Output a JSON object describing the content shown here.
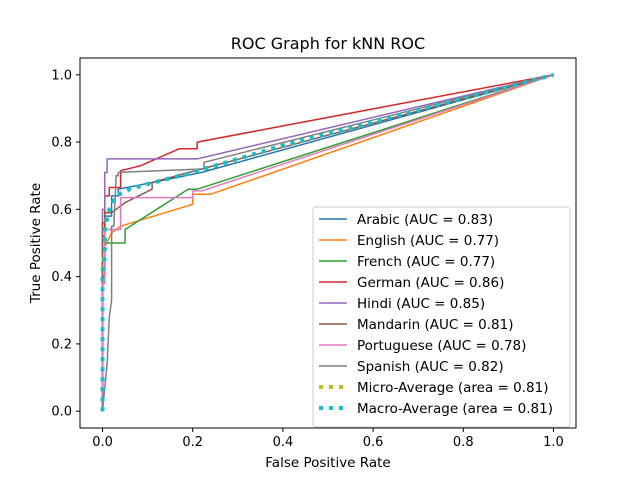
{
  "chart_data": {
    "type": "line",
    "title": "ROC Graph for kNN ROC",
    "xlabel": "False Positive Rate",
    "ylabel": "True Positive Rate",
    "xlim": [
      -0.05,
      1.05
    ],
    "ylim": [
      -0.05,
      1.05
    ],
    "xticks": [
      "0.0",
      "0.2",
      "0.4",
      "0.6",
      "0.8",
      "1.0"
    ],
    "yticks": [
      "0.0",
      "0.2",
      "0.4",
      "0.6",
      "0.8",
      "1.0"
    ],
    "grid": false,
    "legend_position": "lower-right",
    "series": [
      {
        "name": "Arabic (AUC = 0.83)",
        "color": "#1f77b4",
        "style": "solid",
        "x": [
          0,
          0,
          0.005,
          0.005,
          0.02,
          0.02,
          0.035,
          0.035,
          0.11,
          0.22,
          1.0
        ],
        "y": [
          0,
          0.4,
          0.4,
          0.58,
          0.58,
          0.64,
          0.64,
          0.66,
          0.68,
          0.71,
          1.0
        ]
      },
      {
        "name": "English (AUC = 0.77)",
        "color": "#ff7f0e",
        "style": "solid",
        "x": [
          0,
          0,
          0.005,
          0.005,
          0.02,
          0.04,
          0.2,
          0.2,
          0.24,
          1.0
        ],
        "y": [
          0,
          0.4,
          0.4,
          0.49,
          0.53,
          0.55,
          0.615,
          0.645,
          0.645,
          1.0
        ]
      },
      {
        "name": "French (AUC = 0.77)",
        "color": "#2ca02c",
        "style": "solid",
        "x": [
          0,
          0,
          0.005,
          0.005,
          0.05,
          0.05,
          0.19,
          0.21,
          1.0
        ],
        "y": [
          0,
          0.4,
          0.4,
          0.5,
          0.5,
          0.54,
          0.66,
          0.66,
          1.0
        ]
      },
      {
        "name": "German (AUC = 0.86)",
        "color": "#d62728",
        "style": "solid",
        "x": [
          0,
          0,
          0.005,
          0.005,
          0.015,
          0.015,
          0.04,
          0.04,
          0.085,
          0.17,
          0.21,
          0.21,
          1.0
        ],
        "y": [
          0,
          0.52,
          0.52,
          0.64,
          0.64,
          0.665,
          0.665,
          0.715,
          0.73,
          0.78,
          0.78,
          0.8,
          1.0
        ]
      },
      {
        "name": "Hindi (AUC = 0.85)",
        "color": "#9467bd",
        "style": "solid",
        "x": [
          0,
          0,
          0.005,
          0.005,
          0.01,
          0.01,
          0.21,
          1.0
        ],
        "y": [
          0,
          0.6,
          0.6,
          0.71,
          0.71,
          0.75,
          0.75,
          1.0
        ]
      },
      {
        "name": "Mandarin (AUC = 0.81)",
        "color": "#8c564b",
        "style": "solid",
        "x": [
          0,
          0,
          0.005,
          0.005,
          0.02,
          0.05,
          0.11,
          0.11,
          0.22,
          1.0
        ],
        "y": [
          0,
          0.56,
          0.56,
          0.59,
          0.59,
          0.62,
          0.66,
          0.68,
          0.72,
          1.0
        ]
      },
      {
        "name": "Portuguese (AUC = 0.78)",
        "color": "#e377c2",
        "style": "solid",
        "x": [
          0,
          0,
          0.005,
          0.005,
          0.04,
          0.04,
          0.2,
          0.2,
          0.22,
          1.0
        ],
        "y": [
          0,
          0.38,
          0.38,
          0.54,
          0.54,
          0.635,
          0.635,
          0.655,
          0.655,
          1.0
        ]
      },
      {
        "name": "Spanish (AUC = 0.82)",
        "color": "#7f7f7f",
        "style": "solid",
        "x": [
          0,
          0.01,
          0.015,
          0.02,
          0.02,
          0.025,
          0.03,
          0.03,
          0.035,
          0.035,
          0.22,
          0.225,
          0.225,
          1.0
        ],
        "y": [
          0,
          0.14,
          0.28,
          0.33,
          0.55,
          0.55,
          0.69,
          0.7,
          0.7,
          0.71,
          0.72,
          0.72,
          0.74,
          1.0
        ]
      },
      {
        "name": "Micro-Average (area = 0.81)",
        "color": "#bcbd22",
        "style": "dotted",
        "x": [
          0,
          0,
          0.005,
          0.005,
          0.015,
          0.03,
          0.06,
          0.1,
          0.2,
          0.4,
          0.6,
          0.8,
          1.0
        ],
        "y": [
          0,
          0.42,
          0.48,
          0.55,
          0.6,
          0.64,
          0.66,
          0.675,
          0.71,
          0.79,
          0.86,
          0.93,
          1.0
        ]
      },
      {
        "name": "Macro-Average (area = 0.81)",
        "color": "#17becf",
        "style": "dotted",
        "x": [
          0,
          0,
          0.005,
          0.005,
          0.015,
          0.03,
          0.06,
          0.1,
          0.2,
          0.4,
          0.6,
          0.8,
          1.0
        ],
        "y": [
          0,
          0.4,
          0.46,
          0.54,
          0.6,
          0.64,
          0.66,
          0.675,
          0.71,
          0.79,
          0.86,
          0.93,
          1.0
        ]
      }
    ]
  }
}
